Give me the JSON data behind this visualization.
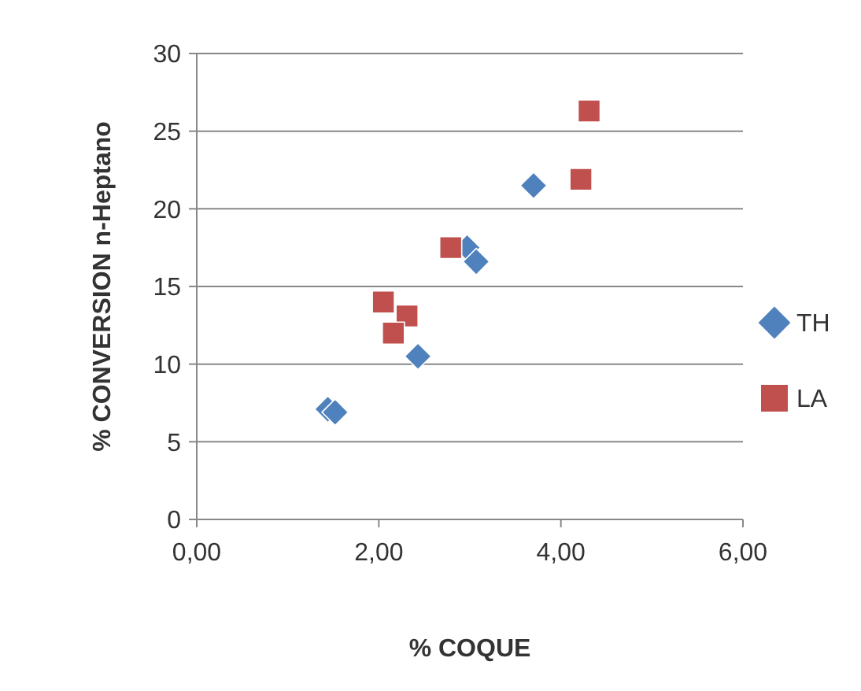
{
  "chart_data": {
    "type": "scatter",
    "xlabel": "% COQUE",
    "ylabel": "% CONVERSION n-Heptano",
    "xlim": [
      0,
      6
    ],
    "xticks": [
      {
        "value": 0,
        "label": "0,00"
      },
      {
        "value": 2,
        "label": "2,00"
      },
      {
        "value": 4,
        "label": "4,00"
      },
      {
        "value": 6,
        "label": "6,00"
      }
    ],
    "ylim": [
      0,
      30
    ],
    "yticks": [
      0,
      5,
      10,
      15,
      20,
      25,
      30
    ],
    "grid": "y",
    "legend": "right",
    "series": [
      {
        "name": "TH",
        "color": "#4f81bd",
        "marker": "diamond",
        "x": [
          1.44,
          1.52,
          2.43,
          2.97,
          3.07,
          3.7
        ],
        "values": [
          7.1,
          6.9,
          10.5,
          17.5,
          16.6,
          21.5
        ]
      },
      {
        "name": "LA",
        "color": "#c0504d",
        "marker": "square",
        "x": [
          4.31,
          4.22,
          2.79,
          2.05,
          2.31,
          2.16
        ],
        "values": [
          26.3,
          21.9,
          17.5,
          14,
          13.1,
          12
        ]
      }
    ]
  }
}
